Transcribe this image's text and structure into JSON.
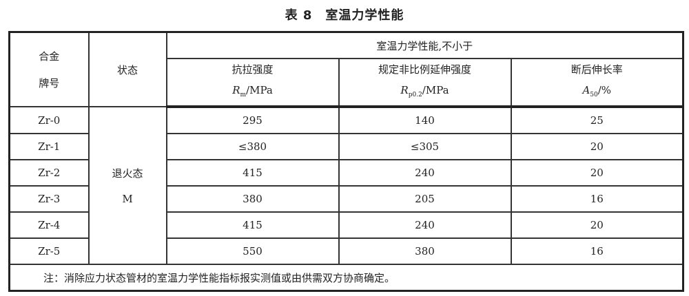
{
  "title": "表 8　室温力学性能",
  "header": {
    "grade": "合金\n牌号",
    "grade_line1": "合金",
    "grade_line2": "牌号",
    "state": "状态",
    "group": "室温力学性能,不小于",
    "columns": [
      {
        "name": "抗拉强度",
        "symbol": "R",
        "sub": "m",
        "unit": "/MPa"
      },
      {
        "name": "规定非比例延伸强度",
        "symbol": "R",
        "sub": "p0.2",
        "unit": "/MPa"
      },
      {
        "name": "断后伸长率",
        "symbol": "A",
        "sub": "50",
        "unit": "/%"
      }
    ]
  },
  "state_cell": {
    "line1": "退火态",
    "line2": "M"
  },
  "rows": [
    {
      "grade": "Zr-0",
      "rm": "295",
      "rp": "140",
      "a": "25"
    },
    {
      "grade": "Zr-1",
      "rm": "≤380",
      "rp": "≤305",
      "a": "20"
    },
    {
      "grade": "Zr-2",
      "rm": "415",
      "rp": "240",
      "a": "20"
    },
    {
      "grade": "Zr-3",
      "rm": "380",
      "rp": "205",
      "a": "16"
    },
    {
      "grade": "Zr-4",
      "rm": "415",
      "rp": "240",
      "a": "20"
    },
    {
      "grade": "Zr-5",
      "rm": "550",
      "rp": "380",
      "a": "16"
    }
  ],
  "note": "注：消除应力状态管材的室温力学性能指标报实测值或由供需双方协商确定。"
}
